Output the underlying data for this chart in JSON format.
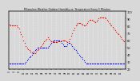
{
  "title": "Milwaukee Weather Outdoor Humidity vs. Temperature Every 5 Minutes",
  "bg_color": "#d8d8d8",
  "plot_bg_color": "#d8d8d8",
  "grid_color": "#ffffff",
  "temp_color": "#ff0000",
  "humidity_color": "#0000ff",
  "temp_y": [
    82,
    80,
    80,
    80,
    80,
    80,
    80,
    78,
    76,
    72,
    68,
    65,
    60,
    56,
    52,
    50,
    48,
    46,
    44,
    43,
    42,
    42,
    42,
    44,
    46,
    48,
    50,
    52,
    54,
    56,
    58,
    60,
    62,
    64,
    62,
    60,
    58,
    57,
    57,
    57,
    57,
    57,
    58,
    58,
    59,
    60,
    60,
    60,
    60,
    58,
    57,
    58,
    62,
    66,
    70,
    74,
    77,
    80,
    82,
    84,
    84,
    84,
    83,
    82,
    80,
    80,
    82,
    84,
    86,
    88,
    88,
    88,
    87,
    86,
    85,
    86,
    88,
    90,
    91,
    92,
    92,
    92,
    91,
    90,
    88,
    86,
    84,
    82,
    80,
    78,
    76,
    74,
    72,
    70,
    68,
    66,
    64,
    62,
    60,
    58
  ],
  "humidity_y": [
    28,
    28,
    28,
    28,
    28,
    28,
    28,
    28,
    28,
    28,
    28,
    28,
    28,
    28,
    30,
    32,
    34,
    36,
    38,
    40,
    42,
    44,
    46,
    48,
    50,
    50,
    50,
    50,
    50,
    50,
    50,
    50,
    50,
    50,
    52,
    54,
    56,
    58,
    60,
    60,
    60,
    60,
    60,
    60,
    58,
    56,
    54,
    52,
    52,
    52,
    54,
    56,
    56,
    54,
    52,
    50,
    48,
    46,
    44,
    42,
    40,
    38,
    36,
    34,
    32,
    30,
    28,
    28,
    28,
    28,
    28,
    28,
    28,
    28,
    28,
    28,
    28,
    28,
    28,
    28,
    28,
    28,
    28,
    28,
    28,
    28,
    28,
    28,
    28,
    28,
    28,
    28,
    28,
    28,
    28,
    28,
    28,
    28,
    28,
    28
  ],
  "ylim": [
    20,
    100
  ],
  "right_yticks": [
    100,
    90,
    80,
    70,
    60,
    50,
    40,
    30,
    20
  ],
  "right_yticklabels": [
    "100",
    "90",
    "80",
    "70",
    "60",
    "50",
    "40",
    "30",
    "20"
  ],
  "n_points": 100,
  "dot_size": 0.8,
  "n_xticks": 24
}
